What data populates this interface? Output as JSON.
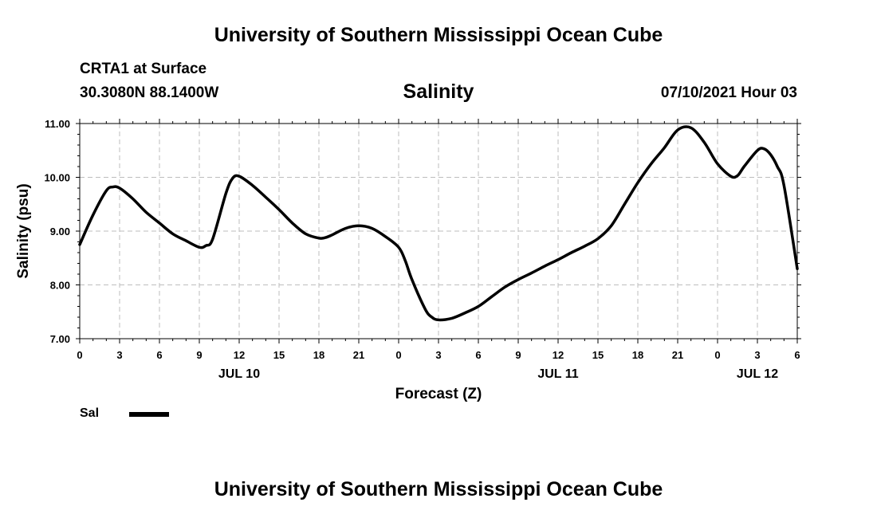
{
  "header": {
    "title": "University of Southern Mississippi Ocean Cube",
    "station": "CRTA1 at Surface",
    "coords": "30.3080N  88.1400W",
    "datetime": "07/10/2021 Hour 03"
  },
  "footer": {
    "title": "University of Southern Mississippi Ocean Cube"
  },
  "chart_data": {
    "type": "line",
    "title": "Salinity",
    "xlabel": "Forecast (Z)",
    "ylabel": "Salinity (psu)",
    "xlim": [
      0,
      54
    ],
    "ylim": [
      7.0,
      11.0
    ],
    "yticks": [
      "7.00",
      "8.00",
      "9.00",
      "10.00",
      "11.00"
    ],
    "xtick_labels": [
      "0",
      "3",
      "6",
      "9",
      "12",
      "15",
      "18",
      "21",
      "0",
      "3",
      "6",
      "9",
      "12",
      "15",
      "18",
      "21",
      "0",
      "3",
      "6"
    ],
    "day_labels": [
      {
        "label": "JUL 10",
        "hour": 12
      },
      {
        "label": "JUL 11",
        "hour": 36
      },
      {
        "label": "JUL 12",
        "hour": 51
      }
    ],
    "grid": true,
    "series": [
      {
        "name": "Sal",
        "color": "#000000",
        "x": [
          0,
          1,
          2,
          2.5,
          3,
          4,
          5,
          6,
          7,
          8,
          9,
          9.5,
          10,
          11,
          11.5,
          12,
          13,
          14,
          15,
          16,
          17,
          18,
          18.5,
          19,
          20,
          21,
          22,
          23,
          24,
          24.5,
          25,
          26,
          26.5,
          27,
          28,
          29,
          30,
          31,
          32,
          33,
          34,
          35,
          36,
          37,
          38,
          39,
          40,
          41,
          42,
          43,
          44,
          45,
          46,
          47,
          48,
          49,
          49.5,
          50,
          51,
          51.5,
          52,
          52.5,
          53,
          54
        ],
        "values": [
          8.75,
          9.3,
          9.75,
          9.82,
          9.8,
          9.6,
          9.35,
          9.15,
          8.95,
          8.82,
          8.7,
          8.73,
          8.85,
          9.7,
          9.98,
          10.02,
          9.85,
          9.63,
          9.4,
          9.15,
          8.95,
          8.87,
          8.88,
          8.93,
          9.05,
          9.1,
          9.05,
          8.9,
          8.7,
          8.45,
          8.1,
          7.55,
          7.4,
          7.35,
          7.38,
          7.48,
          7.6,
          7.78,
          7.96,
          8.1,
          8.22,
          8.35,
          8.47,
          8.6,
          8.72,
          8.86,
          9.1,
          9.5,
          9.9,
          10.25,
          10.55,
          10.88,
          10.92,
          10.65,
          10.25,
          10.02,
          10.03,
          10.2,
          10.5,
          10.53,
          10.42,
          10.2,
          9.85,
          8.3
        ]
      }
    ]
  }
}
